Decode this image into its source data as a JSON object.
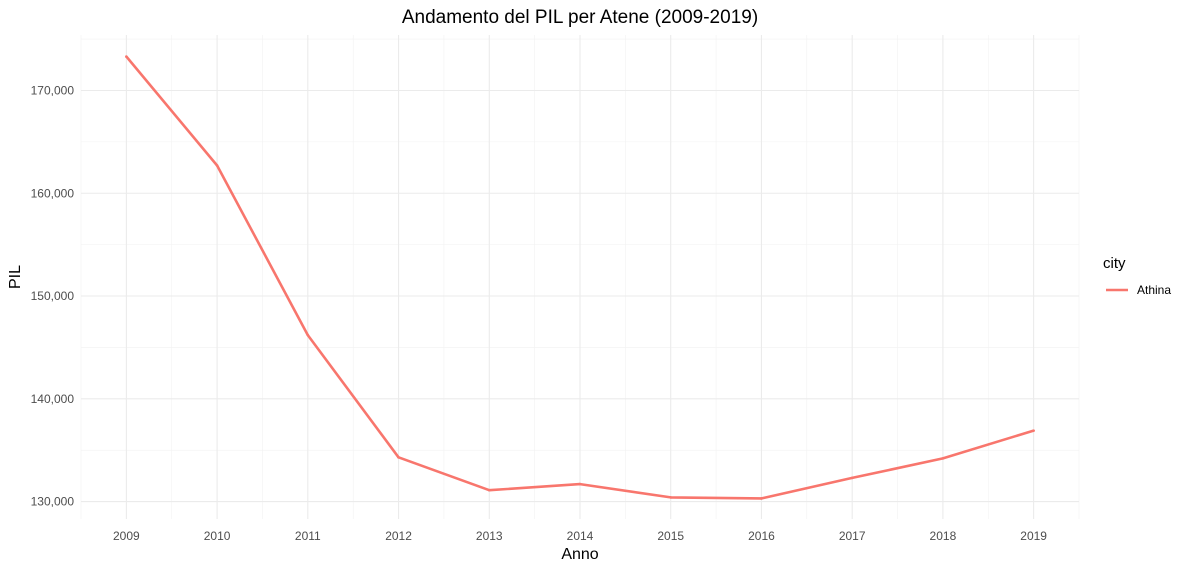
{
  "chart_data": {
    "type": "line",
    "title": "Andamento del PIL per Atene (2009-2019)",
    "xlabel": "Anno",
    "ylabel": "PIL",
    "x": [
      2009,
      2010,
      2011,
      2012,
      2013,
      2014,
      2015,
      2016,
      2017,
      2018,
      2019
    ],
    "x_tick_labels": [
      "2009",
      "2010",
      "2011",
      "2012",
      "2013",
      "2014",
      "2015",
      "2016",
      "2017",
      "2018",
      "2019"
    ],
    "y_ticks": [
      130000,
      140000,
      150000,
      160000,
      170000
    ],
    "y_tick_labels": [
      "130,000",
      "140,000",
      "150,000",
      "160,000",
      "170,000"
    ],
    "xlim": [
      2008.5,
      2019.5
    ],
    "ylim": [
      128300,
      175400
    ],
    "grid": true,
    "legend": {
      "title": "city",
      "position": "right"
    },
    "series": [
      {
        "name": "Athina",
        "color": "#f8766d",
        "values": [
          173300,
          162700,
          146200,
          134300,
          131100,
          131700,
          130400,
          130300,
          132300,
          134200,
          136900
        ]
      }
    ]
  }
}
